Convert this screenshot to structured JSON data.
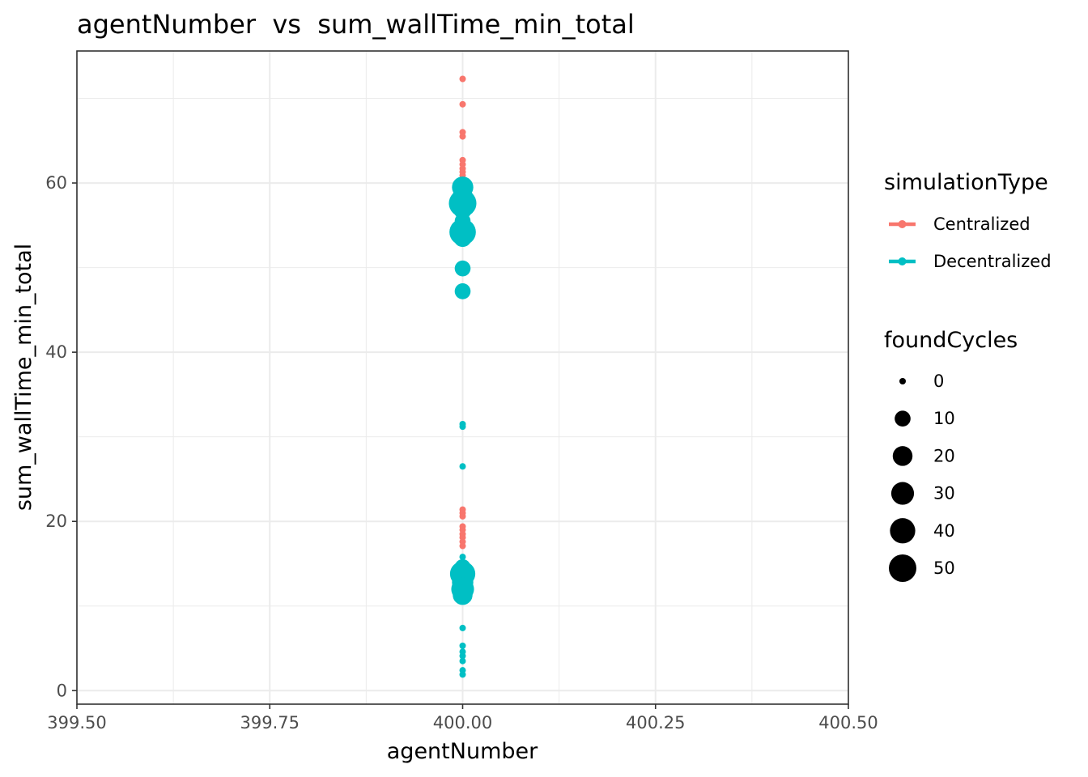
{
  "chart_data": {
    "type": "scatter",
    "title": "agentNumber  vs  sum_wallTime_min_total",
    "xlabel": "agentNumber",
    "ylabel": "sum_wallTime_min_total",
    "xlim": [
      399.5,
      400.5
    ],
    "ylim": [
      -1.6,
      75.6
    ],
    "x_ticks": [
      "399.50",
      "399.75",
      "400.00",
      "400.25",
      "400.50"
    ],
    "x_tick_values": [
      399.5,
      399.75,
      400.0,
      400.25,
      400.5
    ],
    "y_ticks": [
      "0",
      "20",
      "40",
      "60"
    ],
    "y_tick_values": [
      0,
      20,
      40,
      60
    ],
    "grid": true,
    "size_variable": "foundCycles",
    "color_variable": "simulationType",
    "series": [
      {
        "name": "Centralized",
        "color": "#F8766D",
        "points": [
          {
            "x": 400,
            "y": 72.3,
            "size": 0
          },
          {
            "x": 400,
            "y": 69.3,
            "size": 0
          },
          {
            "x": 400,
            "y": 66.0,
            "size": 0
          },
          {
            "x": 400,
            "y": 65.5,
            "size": 0
          },
          {
            "x": 400,
            "y": 62.7,
            "size": 0
          },
          {
            "x": 400,
            "y": 62.2,
            "size": 0
          },
          {
            "x": 400,
            "y": 61.7,
            "size": 0
          },
          {
            "x": 400,
            "y": 61.3,
            "size": 0
          },
          {
            "x": 400,
            "y": 60.9,
            "size": 0
          },
          {
            "x": 400,
            "y": 60.5,
            "size": 0
          },
          {
            "x": 400,
            "y": 60.1,
            "size": 0
          },
          {
            "x": 400,
            "y": 21.4,
            "size": 0
          },
          {
            "x": 400,
            "y": 21.0,
            "size": 0
          },
          {
            "x": 400,
            "y": 20.6,
            "size": 0
          },
          {
            "x": 400,
            "y": 19.4,
            "size": 0
          },
          {
            "x": 400,
            "y": 19.0,
            "size": 0
          },
          {
            "x": 400,
            "y": 18.5,
            "size": 0
          },
          {
            "x": 400,
            "y": 18.1,
            "size": 0
          },
          {
            "x": 400,
            "y": 17.6,
            "size": 0
          },
          {
            "x": 400,
            "y": 17.1,
            "size": 0
          }
        ]
      },
      {
        "name": "Decentralized",
        "color": "#00BFC4",
        "points": [
          {
            "x": 400,
            "y": 59.5,
            "size": 25
          },
          {
            "x": 400,
            "y": 58.5,
            "size": 20
          },
          {
            "x": 400,
            "y": 57.6,
            "size": 50
          },
          {
            "x": 400,
            "y": 56.8,
            "size": 15
          },
          {
            "x": 400,
            "y": 55.5,
            "size": 10
          },
          {
            "x": 400,
            "y": 54.2,
            "size": 45
          },
          {
            "x": 400,
            "y": 53.5,
            "size": 15
          },
          {
            "x": 400,
            "y": 49.9,
            "size": 10
          },
          {
            "x": 400,
            "y": 47.2,
            "size": 10
          },
          {
            "x": 400,
            "y": 31.5,
            "size": 0
          },
          {
            "x": 400,
            "y": 31.2,
            "size": 0
          },
          {
            "x": 400,
            "y": 26.5,
            "size": 0
          },
          {
            "x": 400,
            "y": 15.8,
            "size": 0
          },
          {
            "x": 400,
            "y": 14.6,
            "size": 10
          },
          {
            "x": 400,
            "y": 13.8,
            "size": 40
          },
          {
            "x": 400,
            "y": 12.8,
            "size": 25
          },
          {
            "x": 400,
            "y": 12.0,
            "size": 30
          },
          {
            "x": 400,
            "y": 11.3,
            "size": 20
          },
          {
            "x": 400,
            "y": 7.4,
            "size": 0
          },
          {
            "x": 400,
            "y": 5.3,
            "size": 0
          },
          {
            "x": 400,
            "y": 4.6,
            "size": 0
          },
          {
            "x": 400,
            "y": 4.1,
            "size": 0
          },
          {
            "x": 400,
            "y": 3.5,
            "size": 0
          },
          {
            "x": 400,
            "y": 2.4,
            "size": 0
          },
          {
            "x": 400,
            "y": 1.9,
            "size": 0
          }
        ]
      }
    ],
    "legend": {
      "placement": "right",
      "color_title": "simulationType",
      "color_entries": [
        {
          "label": "Centralized",
          "color": "#F8766D"
        },
        {
          "label": "Decentralized",
          "color": "#00BFC4"
        }
      ],
      "size_title": "foundCycles",
      "size_entries": [
        {
          "label": "0",
          "value": 0
        },
        {
          "label": "10",
          "value": 10
        },
        {
          "label": "20",
          "value": 20
        },
        {
          "label": "30",
          "value": 30
        },
        {
          "label": "40",
          "value": 40
        },
        {
          "label": "50",
          "value": 50
        }
      ]
    }
  }
}
